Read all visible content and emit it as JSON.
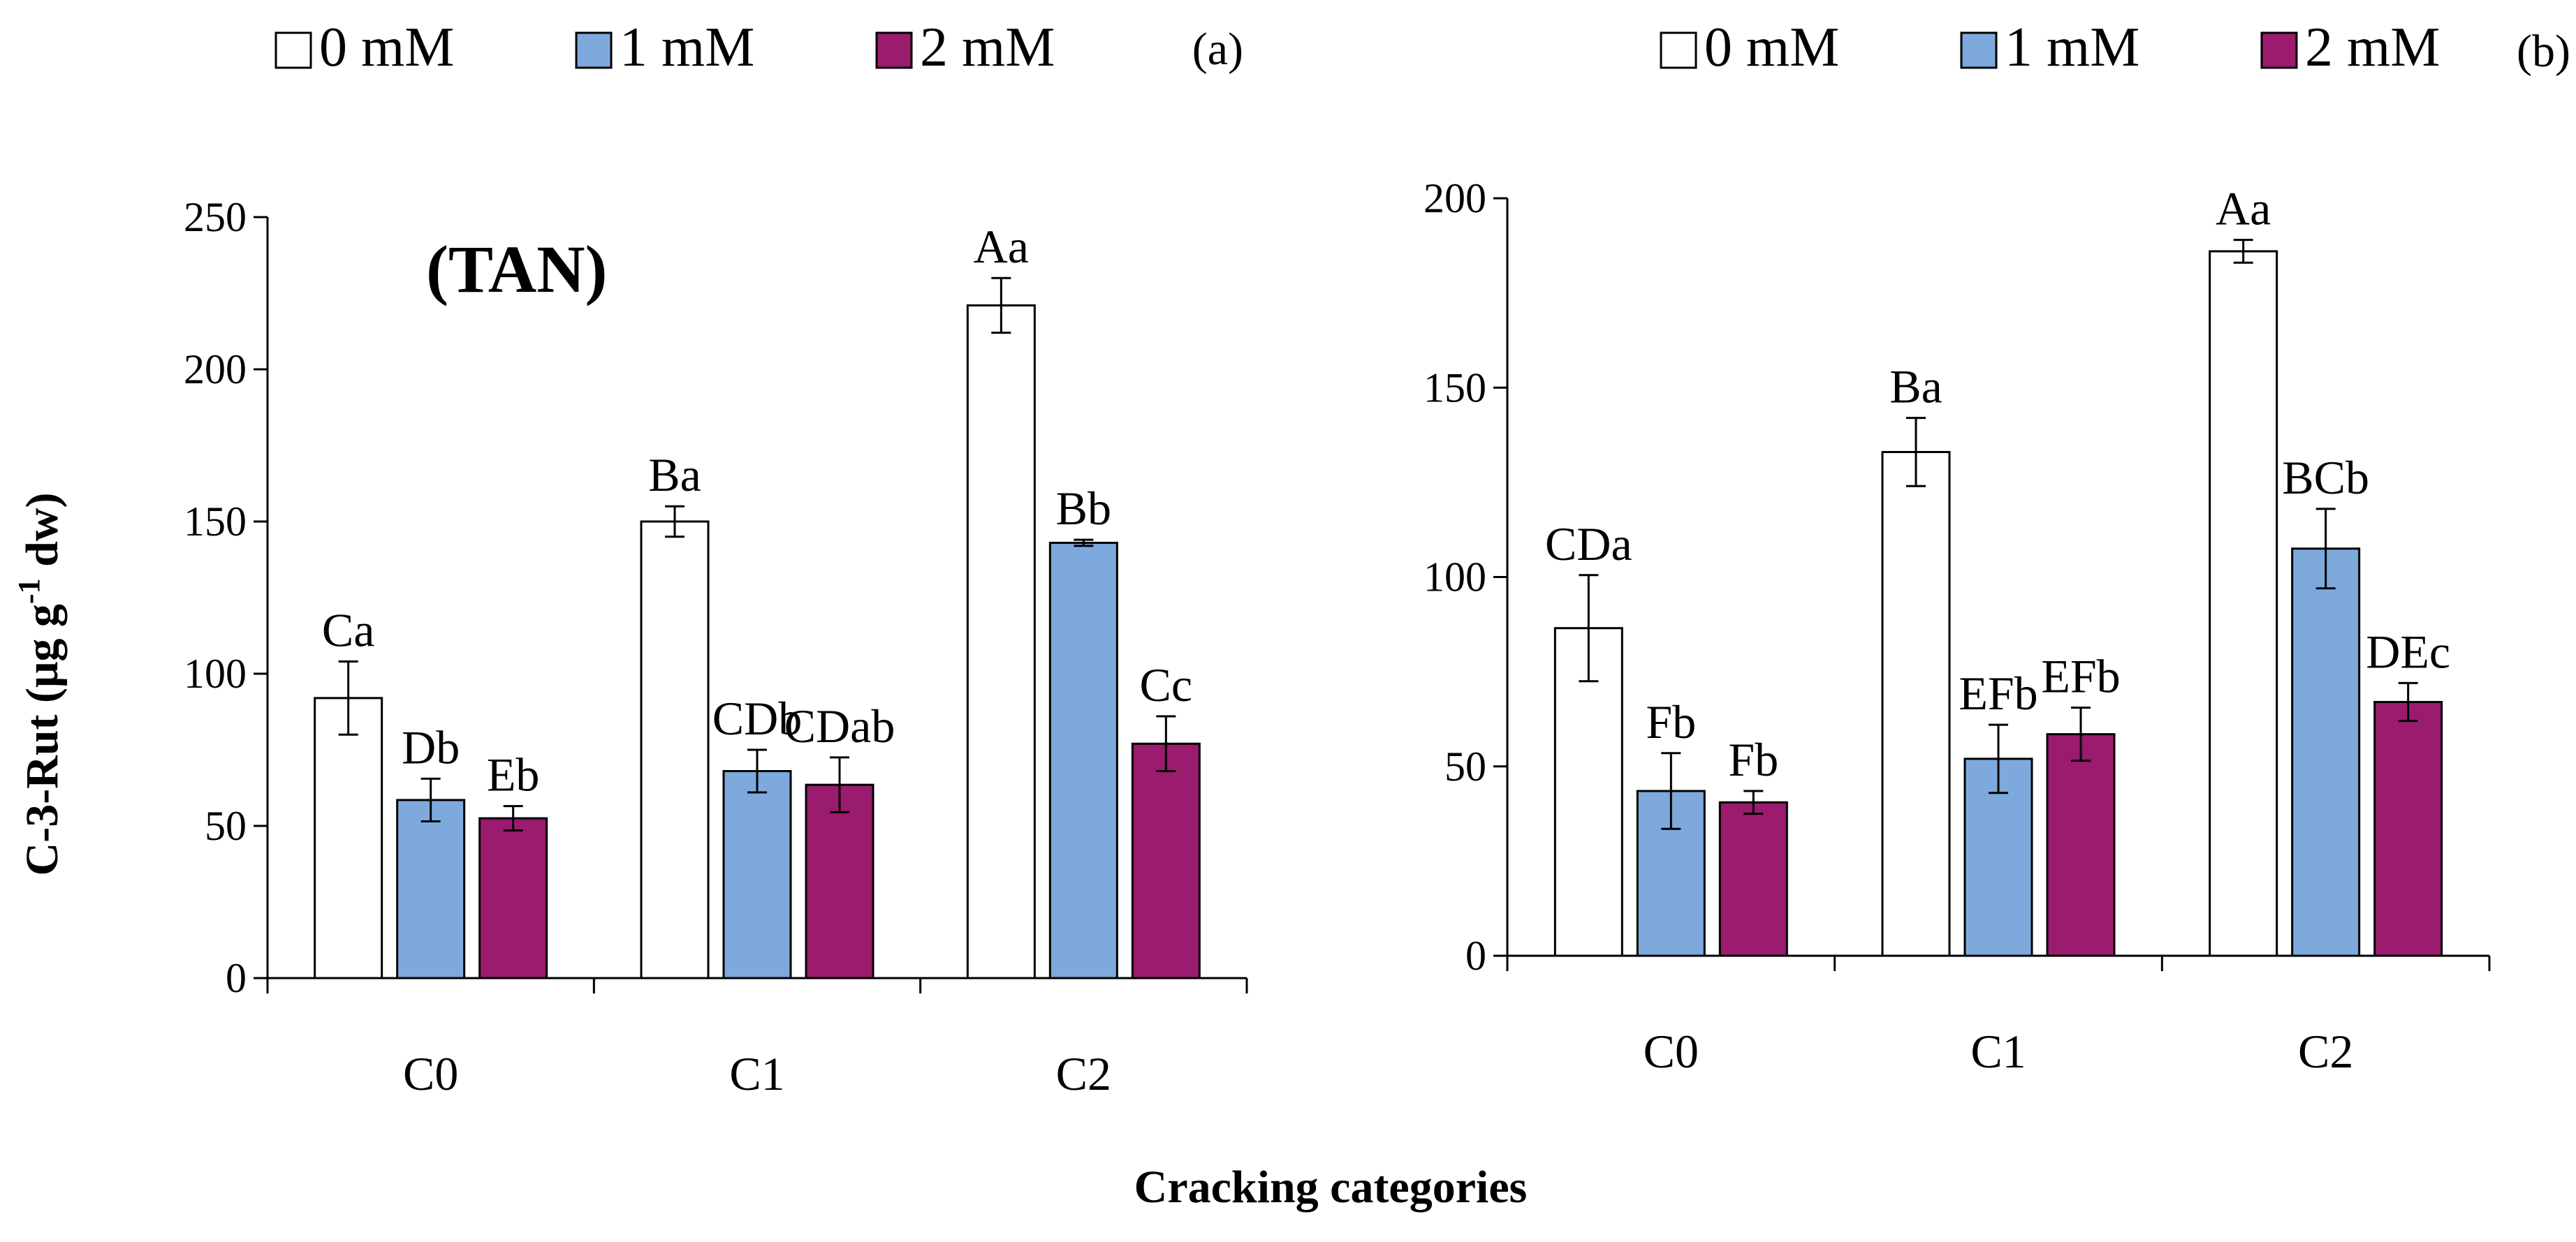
{
  "chart_data": [
    {
      "type": "bar",
      "panel_label": "(a)",
      "annotation": "(TAN)",
      "ylabel_main": "C-3-Rut (μg g",
      "ylabel_sup": "-1",
      "ylabel_end": " dw)",
      "xlabel": "",
      "categories": [
        "C0",
        "C1",
        "C2"
      ],
      "ylim": [
        0,
        250
      ],
      "yticks": [
        0,
        50,
        100,
        150,
        200,
        250
      ],
      "series": [
        {
          "name": "0 mM",
          "color": "#ffffff",
          "values": [
            92,
            150,
            221
          ],
          "errors": [
            12,
            5,
            9
          ],
          "labels": [
            "Ca",
            "Ba",
            "Aa"
          ]
        },
        {
          "name": "1 mM",
          "color": "#7ea9dc",
          "values": [
            58.5,
            68,
            143
          ],
          "errors": [
            7,
            7,
            1
          ],
          "labels": [
            "Db",
            "CDb",
            "Bb"
          ]
        },
        {
          "name": "2 mM",
          "color": "#9b1b6e",
          "values": [
            52.5,
            63.5,
            77
          ],
          "errors": [
            4,
            9,
            9
          ],
          "labels": [
            "Eb",
            "CDab",
            "Cc"
          ]
        }
      ]
    },
    {
      "type": "bar",
      "panel_label": "(b)",
      "xlabel": "",
      "categories": [
        "C0",
        "C1",
        "C2"
      ],
      "ylim": [
        0,
        200
      ],
      "yticks": [
        0,
        50,
        100,
        150,
        200
      ],
      "series": [
        {
          "name": "0 mM",
          "color": "#ffffff",
          "values": [
            86.5,
            133,
            186
          ],
          "errors": [
            14,
            9,
            3
          ],
          "labels": [
            "CDa",
            "Ba",
            "Aa"
          ]
        },
        {
          "name": "1 mM",
          "color": "#7ea9dc",
          "values": [
            43.5,
            52,
            107.5
          ],
          "errors": [
            10,
            9,
            10.5
          ],
          "labels": [
            "Fb",
            "EFb",
            "BCb"
          ]
        },
        {
          "name": "2 mM",
          "color": "#9b1b6e",
          "values": [
            40.5,
            58.5,
            67
          ],
          "errors": [
            3,
            7,
            5
          ],
          "labels": [
            "Fb",
            "EFb",
            "DEc"
          ]
        }
      ]
    }
  ],
  "shared_xlabel": "Cracking categories"
}
